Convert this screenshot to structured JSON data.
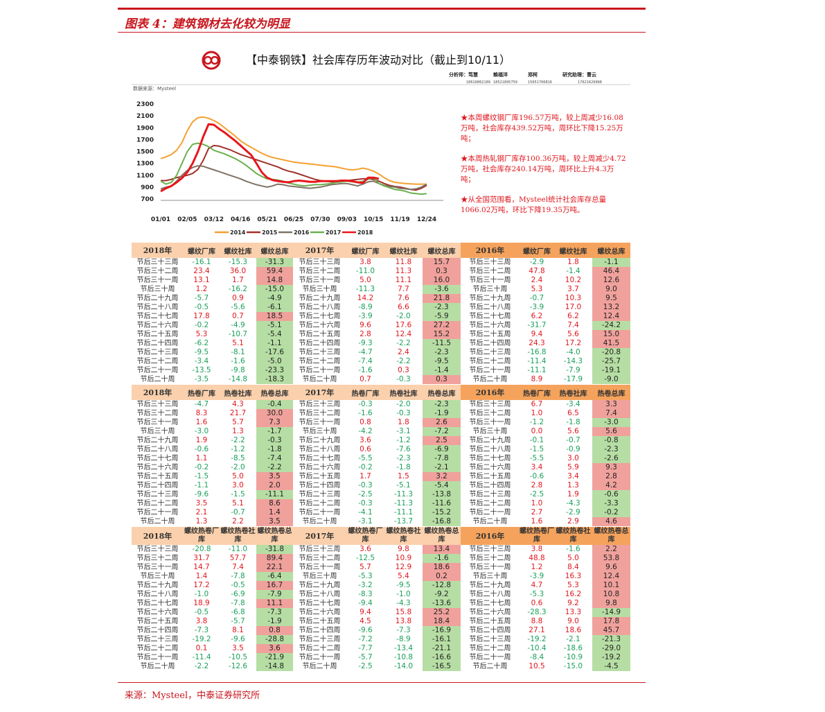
{
  "header": {
    "figure_title": "图表 4：建筑钢材去化较为明显",
    "analysts": [
      {
        "name": "分析师：笃慧",
        "phone": "18616862189"
      },
      {
        "name": "赖福洋",
        "phone": "18521895759"
      },
      {
        "name": "郑柯",
        "phone": "15651766816"
      },
      {
        "name": "研究助理：曹云",
        "phone": "17621629968"
      }
    ],
    "data_source": "数据来源：Mysteel"
  },
  "chart_data": {
    "type": "line",
    "title": "【中泰钢铁】社会库存历年波动对比（截止到10/11）",
    "categories": [
      "01/01",
      null,
      null,
      null,
      null,
      "02/05",
      null,
      null,
      null,
      null,
      "03/12",
      null,
      null,
      null,
      null,
      "04/16",
      null,
      null,
      null,
      null,
      "05/21",
      null,
      null,
      null,
      null,
      "06/25",
      null,
      null,
      null,
      null,
      "07/30",
      null,
      null,
      null,
      null,
      "09/03",
      null,
      null,
      null,
      null,
      "10/15",
      null,
      null,
      null,
      null,
      "11/19",
      null,
      null,
      null,
      null,
      "12/24"
    ],
    "ylim": [
      700,
      2300
    ],
    "yticks": [
      700,
      900,
      1100,
      1300,
      1500,
      1700,
      1900,
      2100,
      2300
    ],
    "grid": false,
    "legend": "bottom",
    "series": [
      {
        "name": "2014",
        "color": "#f5a030",
        "values": [
          1380,
          1410,
          1450,
          1520,
          1650,
          1850,
          2000,
          2070,
          2080,
          2060,
          2020,
          1970,
          1900,
          1830,
          1760,
          1680,
          1620,
          1570,
          1520,
          1470,
          1430,
          1400,
          1380,
          1360,
          1340,
          1320,
          1310,
          1300,
          1290,
          1280,
          1270,
          1260,
          1250,
          1240,
          1220,
          1200,
          1190,
          1200,
          1220,
          1200,
          1170,
          1120,
          1060,
          1010,
          980,
          970,
          960,
          955,
          950,
          950,
          950
        ]
      },
      {
        "name": "2015",
        "color": "#a0302a",
        "values": [
          1010,
          1010,
          1030,
          1060,
          1080,
          1100,
          1130,
          1200,
          1350,
          1550,
          1600,
          1590,
          1560,
          1530,
          1490,
          1450,
          1420,
          1390,
          1360,
          1330,
          1300,
          1270,
          1240,
          1200,
          1170,
          1150,
          1120,
          1090,
          1060,
          1030,
          1010,
          1000,
          990,
          990,
          1000,
          1010,
          1020,
          1030,
          1040,
          1040,
          1030,
          1000,
          960,
          930,
          910,
          900,
          880,
          860,
          850,
          880,
          930
        ]
      },
      {
        "name": "2016",
        "color": "#7f7263",
        "values": [
          870,
          900,
          920,
          1000,
          1100,
          1180,
          1230,
          1260,
          1250,
          1220,
          1190,
          1160,
          1130,
          1100,
          1070,
          1040,
          1000,
          970,
          940,
          920,
          900,
          920,
          950,
          940,
          920,
          910,
          900,
          890,
          880,
          890,
          900,
          920,
          940,
          950,
          960,
          960,
          940,
          920,
          950,
          990,
          1000,
          960,
          930,
          910,
          900,
          880,
          870,
          860,
          870,
          900,
          950
        ]
      },
      {
        "name": "2017",
        "color": "#6ab04c",
        "values": [
          1000,
          950,
          980,
          1100,
          1300,
          1500,
          1620,
          1640,
          1620,
          1580,
          1520,
          1490,
          1460,
          1420,
          1380,
          1330,
          1270,
          1200,
          1130,
          1080,
          1040,
          1030,
          1020,
          1000,
          970,
          950,
          930,
          920,
          930,
          940,
          940,
          950,
          960,
          980,
          990,
          1000,
          990,
          980,
          1000,
          1030,
          1060,
          960,
          920,
          890,
          860,
          850,
          830,
          800,
          790,
          780,
          790
        ]
      },
      {
        "name": "2018",
        "color": "#e8161b",
        "values": [
          830,
          880,
          920,
          980,
          1050,
          1150,
          1300,
          1500,
          1750,
          1960,
          1950,
          1880,
          1820,
          1750,
          1680,
          1600,
          1520,
          1440,
          1300,
          1150,
          1060,
          1020,
          1000,
          990,
          980,
          1000,
          1010,
          1000,
          990,
          990,
          1000,
          1000,
          1000,
          1000,
          1010,
          1010,
          1000,
          980,
          970,
          1060,
          1060,
          1040,
          null,
          null,
          null,
          null,
          null,
          null,
          null,
          null,
          null
        ]
      }
    ]
  },
  "notes": [
    "★本周螺纹钢厂库196.57万吨，较上周减少16.08万吨，社会库存439.52万吨，周环比下降15.25万吨；",
    "★本周热轧钢厂库存100.36万吨，较上周减少4.72万吨，社会库存240.14万吨，周环比上升4.3万吨；",
    "★从全国范围看，Mysteel统计社会库存总量1066.02万吨，环比下降19.35万吨。"
  ],
  "row_labels": [
    "节后三十三周",
    "节后三十二周",
    "节后三十一周",
    "节后三十周",
    "节后二十九周",
    "节后二十八周",
    "节后二十七周",
    "节后二十六周",
    "节后二十五周",
    "节后二十四周",
    "节后二十三周",
    "节后二十二周",
    "节后二十一周",
    "节后二十周"
  ],
  "tables": [
    {
      "columns": [
        "螺纹厂库",
        "螺纹社库",
        "螺纹总库"
      ],
      "groups": [
        {
          "year": "2018年",
          "rows": [
            [
              "-16.1",
              "-15.3",
              "-31.3"
            ],
            [
              "23.4",
              "36.0",
              "59.4"
            ],
            [
              "13.1",
              "1.7",
              "14.8"
            ],
            [
              "1.2",
              "-16.2",
              "-15.0"
            ],
            [
              "-5.7",
              "0.9",
              "-4.9"
            ],
            [
              "-0.5",
              "-5.6",
              "-6.1"
            ],
            [
              "17.8",
              "0.7",
              "18.5"
            ],
            [
              "-0.2",
              "-4.9",
              "-5.1"
            ],
            [
              "5.3",
              "-10.7",
              "-5.4"
            ],
            [
              "-6.2",
              "5.1",
              "-1.1"
            ],
            [
              "-9.5",
              "-8.1",
              "-17.6"
            ],
            [
              "-3.4",
              "-1.6",
              "-5.0"
            ],
            [
              "-13.5",
              "-9.8",
              "-23.3"
            ],
            [
              "-3.5",
              "-14.8",
              "-18.3"
            ]
          ]
        },
        {
          "year": "2017年",
          "rows": [
            [
              "3.8",
              "11.8",
              "15.7"
            ],
            [
              "-11.0",
              "11.3",
              "0.3"
            ],
            [
              "5.0",
              "11.1",
              "16.0"
            ],
            [
              "-11.3",
              "7.7",
              "-3.6"
            ],
            [
              "14.2",
              "7.6",
              "21.8"
            ],
            [
              "-8.9",
              "6.6",
              "-2.3"
            ],
            [
              "-3.9",
              "-2.0",
              "-5.9"
            ],
            [
              "9.6",
              "17.6",
              "27.2"
            ],
            [
              "2.8",
              "12.4",
              "15.2"
            ],
            [
              "-9.3",
              "-2.2",
              "-11.5"
            ],
            [
              "-4.7",
              "2.4",
              "-2.3"
            ],
            [
              "-7.4",
              "-2.2",
              "-9.5"
            ],
            [
              "-1.6",
              "0.3",
              "-1.4"
            ],
            [
              "0.7",
              "-0.3",
              "0.3"
            ]
          ]
        },
        {
          "year": "2016年",
          "rows": [
            [
              "-2.9",
              "1.8",
              "-1.1"
            ],
            [
              "47.8",
              "-1.4",
              "46.4"
            ],
            [
              "2.4",
              "10.2",
              "12.6"
            ],
            [
              "5.3",
              "3.7",
              "9.0"
            ],
            [
              "-0.7",
              "10.3",
              "9.5"
            ],
            [
              "-3.9",
              "17.0",
              "13.2"
            ],
            [
              "6.2",
              "6.2",
              "12.4"
            ],
            [
              "-31.7",
              "7.4",
              "-24.2"
            ],
            [
              "9.4",
              "5.6",
              "15.0"
            ],
            [
              "24.3",
              "17.2",
              "41.5"
            ],
            [
              "-16.8",
              "-4.0",
              "-20.8"
            ],
            [
              "-11.4",
              "-14.3",
              "-25.7"
            ],
            [
              "-11.1",
              "-7.9",
              "-19.1"
            ],
            [
              "8.9",
              "-17.9",
              "-9.0"
            ]
          ]
        }
      ]
    },
    {
      "columns": [
        "热卷厂库",
        "热卷社库",
        "热卷总库"
      ],
      "groups": [
        {
          "year": "2018年",
          "rows": [
            [
              "-4.7",
              "4.3",
              "-0.4"
            ],
            [
              "8.3",
              "21.7",
              "30.0"
            ],
            [
              "1.6",
              "5.7",
              "7.3"
            ],
            [
              "-3.0",
              "1.3",
              "-1.7"
            ],
            [
              "1.9",
              "-2.2",
              "-0.3"
            ],
            [
              "-0.6",
              "-1.2",
              "-1.8"
            ],
            [
              "1.1",
              "-8.5",
              "-7.4"
            ],
            [
              "-0.2",
              "-2.0",
              "-2.2"
            ],
            [
              "-1.5",
              "5.0",
              "3.5"
            ],
            [
              "-1.1",
              "3.0",
              "2.0"
            ],
            [
              "-9.6",
              "-1.5",
              "-11.1"
            ],
            [
              "3.5",
              "5.1",
              "8.6"
            ],
            [
              "2.1",
              "-0.7",
              "1.4"
            ],
            [
              "1.3",
              "2.2",
              "3.5"
            ]
          ]
        },
        {
          "year": "2017年",
          "rows": [
            [
              "-0.3",
              "-2.0",
              "-2.3"
            ],
            [
              "-1.6",
              "-0.3",
              "-1.9"
            ],
            [
              "0.8",
              "1.8",
              "2.6"
            ],
            [
              "-4.2",
              "-3.1",
              "-7.2"
            ],
            [
              "3.6",
              "-1.2",
              "2.5"
            ],
            [
              "0.6",
              "-7.6",
              "-6.9"
            ],
            [
              "-5.5",
              "-2.3",
              "-7.8"
            ],
            [
              "-0.2",
              "-1.8",
              "-2.1"
            ],
            [
              "1.7",
              "1.5",
              "3.2"
            ],
            [
              "-0.3",
              "-5.1",
              "-5.4"
            ],
            [
              "-2.5",
              "-11.3",
              "-13.8"
            ],
            [
              "-0.3",
              "-11.3",
              "-11.6"
            ],
            [
              "-4.1",
              "-11.1",
              "-15.2"
            ],
            [
              "-3.1",
              "-13.7",
              "-16.8"
            ]
          ]
        },
        {
          "year": "2016年",
          "rows": [
            [
              "6.7",
              "-3.4",
              "3.3"
            ],
            [
              "1.0",
              "6.5",
              "7.4"
            ],
            [
              "-1.2",
              "-1.8",
              "-3.0"
            ],
            [
              "0.0",
              "5.6",
              "5.6"
            ],
            [
              "-0.1",
              "-0.7",
              "-0.8"
            ],
            [
              "-1.5",
              "-0.9",
              "-2.3"
            ],
            [
              "-5.5",
              "3.0",
              "-2.6"
            ],
            [
              "3.4",
              "5.9",
              "9.3"
            ],
            [
              "-0.6",
              "3.4",
              "2.8"
            ],
            [
              "2.8",
              "1.3",
              "4.2"
            ],
            [
              "-2.5",
              "1.9",
              "-0.6"
            ],
            [
              "1.0",
              "-4.3",
              "-3.3"
            ],
            [
              "2.7",
              "-2.9",
              "-0.2"
            ],
            [
              "1.6",
              "2.9",
              "4.6"
            ]
          ]
        }
      ]
    },
    {
      "columns": [
        "螺纹热卷厂库",
        "螺纹热卷社库",
        "螺纹热卷总库"
      ],
      "groups": [
        {
          "year": "2018年",
          "rows": [
            [
              "-20.8",
              "-11.0",
              "-31.8"
            ],
            [
              "31.7",
              "57.7",
              "89.4"
            ],
            [
              "14.7",
              "7.4",
              "22.1"
            ],
            [
              "1.4",
              "-7.8",
              "-6.4"
            ],
            [
              "17.2",
              "-0.5",
              "16.7"
            ],
            [
              "-1.0",
              "-6.9",
              "-7.9"
            ],
            [
              "18.9",
              "-7.8",
              "11.1"
            ],
            [
              "-0.5",
              "-6.8",
              "-7.3"
            ],
            [
              "3.8",
              "-5.7",
              "-1.9"
            ],
            [
              "-7.3",
              "8.1",
              "0.8"
            ],
            [
              "-19.2",
              "-9.6",
              "-28.8"
            ],
            [
              "0.1",
              "3.5",
              "3.6"
            ],
            [
              "-11.4",
              "-10.5",
              "-21.9"
            ],
            [
              "-2.2",
              "-12.6",
              "-14.8"
            ]
          ]
        },
        {
          "year": "2017年",
          "rows": [
            [
              "3.6",
              "9.8",
              "13.4"
            ],
            [
              "-12.5",
              "10.9",
              "-1.6"
            ],
            [
              "5.7",
              "12.9",
              "18.6"
            ],
            [
              "-5.3",
              "5.4",
              "0.2"
            ],
            [
              "-3.2",
              "-9.5",
              "-12.8"
            ],
            [
              "-8.3",
              "-1.0",
              "-9.2"
            ],
            [
              "-9.4",
              "-4.3",
              "-13.6"
            ],
            [
              "9.4",
              "15.8",
              "25.2"
            ],
            [
              "4.5",
              "13.8",
              "18.4"
            ],
            [
              "-9.6",
              "-7.3",
              "-16.9"
            ],
            [
              "-7.2",
              "-8.9",
              "-16.1"
            ],
            [
              "-7.7",
              "-13.4",
              "-21.1"
            ],
            [
              "-5.7",
              "-10.8",
              "-16.6"
            ],
            [
              "-2.5",
              "-14.0",
              "-16.5"
            ]
          ]
        },
        {
          "year": "2016年",
          "rows": [
            [
              "3.8",
              "-1.6",
              "2.2"
            ],
            [
              "48.8",
              "5.0",
              "53.8"
            ],
            [
              "1.2",
              "8.4",
              "9.6"
            ],
            [
              "-3.9",
              "16.3",
              "12.4"
            ],
            [
              "4.7",
              "5.3",
              "10.1"
            ],
            [
              "-5.3",
              "16.2",
              "10.8"
            ],
            [
              "0.6",
              "9.2",
              "9.8"
            ],
            [
              "-28.3",
              "13.3",
              "-14.9"
            ],
            [
              "8.8",
              "9.0",
              "17.8"
            ],
            [
              "27.1",
              "18.6",
              "45.7"
            ],
            [
              "-19.2",
              "-2.1",
              "-21.3"
            ],
            [
              "-10.4",
              "-18.6",
              "-29.0"
            ],
            [
              "-8.4",
              "-10.9",
              "-19.2"
            ],
            [
              "10.5",
              "-15.0",
              "-4.5"
            ]
          ]
        }
      ]
    }
  ],
  "footer": "来源：Mysteel，中泰证券研究所"
}
